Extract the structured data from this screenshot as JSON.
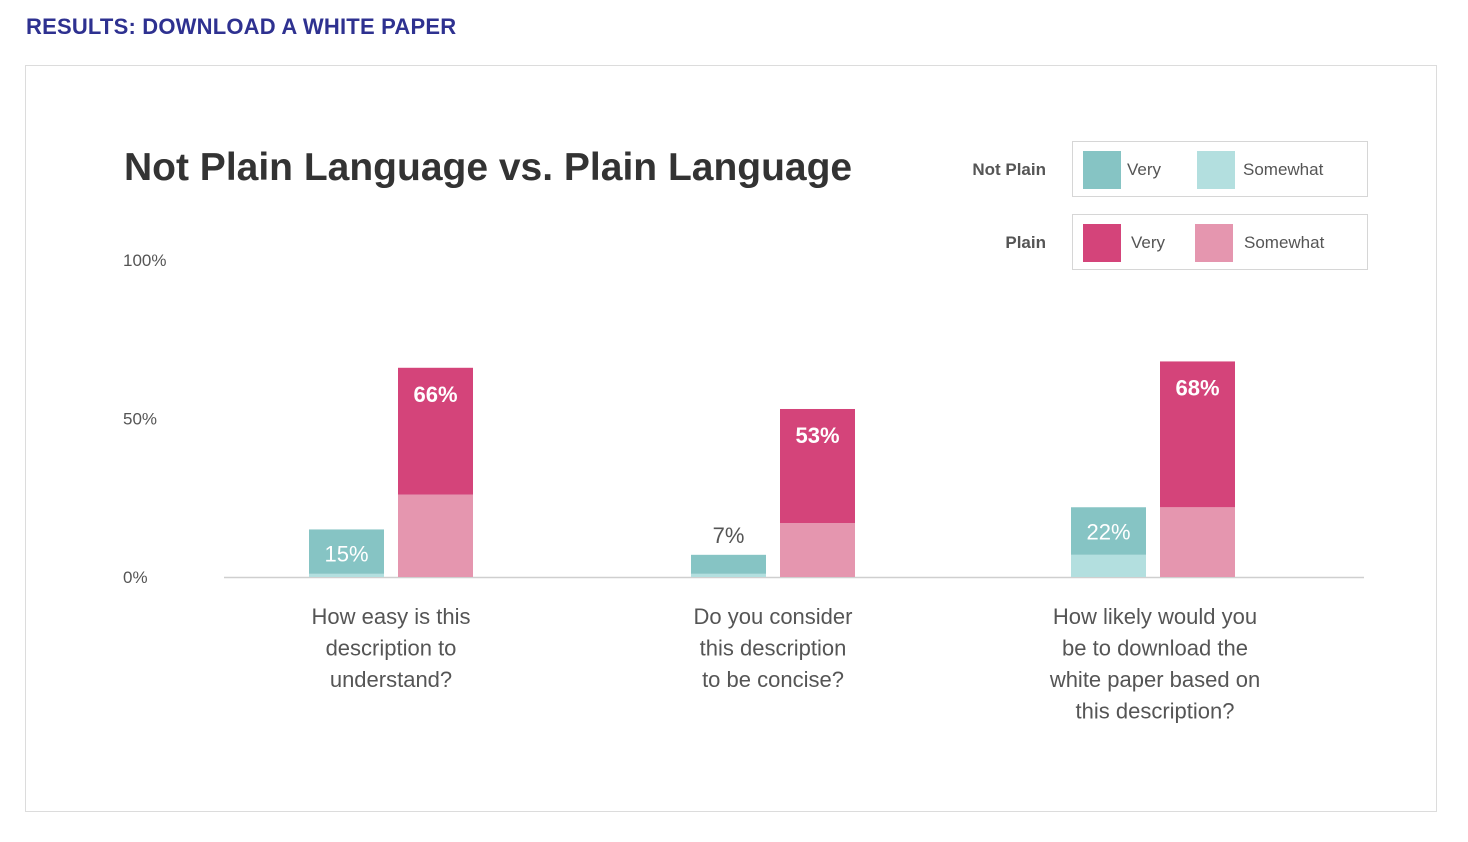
{
  "page_heading": "RESULTS: DOWNLOAD A WHITE PAPER",
  "colors": {
    "heading": "#2e3190",
    "not_plain_very": "#86c4c4",
    "not_plain_somewhat": "#b3dfdf",
    "plain_very": "#d4447a",
    "plain_somewhat": "#e596af",
    "axis_text": "#555555",
    "question_text": "#555555"
  },
  "legend": {
    "rows": [
      {
        "label": "Not Plain",
        "very": "Very",
        "somewhat": "Somewhat"
      },
      {
        "label": "Plain",
        "very": "Very",
        "somewhat": "Somewhat"
      }
    ]
  },
  "chart_data": {
    "type": "bar",
    "stacked": true,
    "title": "Not Plain Language vs. Plain Language",
    "y_ticks": [
      "100%",
      "50%",
      "0%"
    ],
    "ylim": [
      0,
      100
    ],
    "legend_position": "top-right",
    "grid": false,
    "categories": [
      "How easy is this description to understand?",
      "Do you consider this description to be concise?",
      "How likely would you be to download the white paper based on this description?"
    ],
    "category_lines": [
      [
        "How easy is this",
        "description to",
        "understand?"
      ],
      [
        "Do you consider",
        "this description",
        "to be concise?"
      ],
      [
        "How likely would you",
        "be to download the",
        "white paper based on",
        "this description?"
      ]
    ],
    "series": [
      {
        "group": "Not Plain",
        "segment": "Somewhat",
        "values": [
          1,
          1,
          7
        ]
      },
      {
        "group": "Not Plain",
        "segment": "Very",
        "values": [
          14,
          6,
          15
        ]
      },
      {
        "group": "Plain",
        "segment": "Somewhat",
        "values": [
          26,
          17,
          22
        ]
      },
      {
        "group": "Plain",
        "segment": "Very",
        "values": [
          40,
          36,
          46
        ]
      }
    ],
    "totals": {
      "Not Plain": [
        15,
        7,
        22
      ],
      "Plain": [
        66,
        53,
        68
      ]
    },
    "total_labels": {
      "Not Plain": [
        "15%",
        "7%",
        "22%"
      ],
      "Plain": [
        "66%",
        "53%",
        "68%"
      ]
    }
  }
}
